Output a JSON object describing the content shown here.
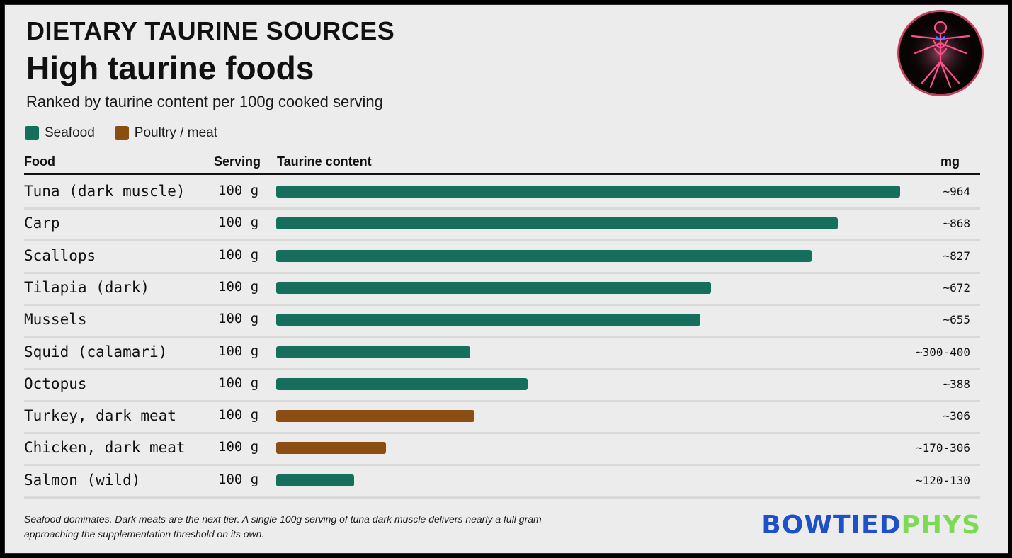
{
  "header": {
    "kicker": "DIETARY TAURINE SOURCES",
    "title": "High taurine foods",
    "subtitle": "Ranked by taurine content per 100g cooked serving"
  },
  "legend": [
    {
      "label": "Seafood",
      "color": "#14705a"
    },
    {
      "label": "Poultry / meat",
      "color": "#8a4e12"
    }
  ],
  "table_headers": {
    "food": "Food",
    "serving": "Serving",
    "taurine": "Taurine content",
    "mg": "mg"
  },
  "chart_data": {
    "type": "bar",
    "orientation": "horizontal",
    "title": "High taurine foods",
    "xlabel": "Taurine content",
    "unit": "mg",
    "xlim": [
      0,
      1000
    ],
    "categories": [
      "Tuna (dark muscle)",
      "Carp",
      "Scallops",
      "Tilapia (dark)",
      "Mussels",
      "Squid (calamari)",
      "Octopus",
      "Turkey, dark meat",
      "Chicken, dark meat",
      "Salmon (wild)"
    ],
    "values": [
      964,
      868,
      827,
      672,
      655,
      300,
      388,
      306,
      170,
      120
    ],
    "series_group": [
      "Seafood",
      "Seafood",
      "Seafood",
      "Seafood",
      "Seafood",
      "Seafood",
      "Seafood",
      "Poultry / meat",
      "Poultry / meat",
      "Seafood"
    ],
    "value_labels": [
      "~964",
      "~868",
      "~827",
      "~672",
      "~655",
      "~300-400",
      "~388",
      "~306",
      "~170-306",
      "~120-130"
    ],
    "servings": [
      "100 g",
      "100 g",
      "100 g",
      "100 g",
      "100 g",
      "100 g",
      "100 g",
      "100 g",
      "100 g",
      "100 g"
    ]
  },
  "footnote": {
    "line1": "Seafood dominates. Dark meats are the next tier. A single 100g serving of tuna dark muscle delivers nearly a full gram —",
    "line2": "approaching the supplementation threshold on its own."
  },
  "brand": {
    "part1": "BOWTIED",
    "part2": "PHYS",
    "color1": "#1e50c8",
    "color2": "#7ed957"
  },
  "logo_icon": "vitruvian-figure-icon"
}
